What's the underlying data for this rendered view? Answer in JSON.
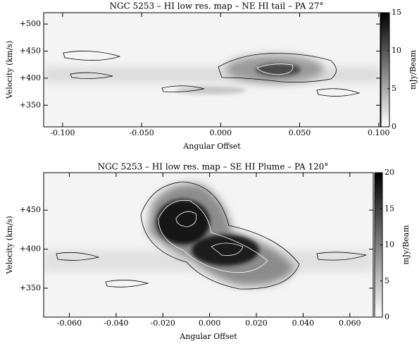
{
  "chart_data": [
    {
      "type": "heatmap",
      "title": "NGC 5253 – HI low res. map – NE HI tail – PA 27°",
      "x_label": "Angular Offset",
      "y_label": "Velocity (km/s)",
      "colorbar_label": "mJy/Beam",
      "xlim": [
        -0.112,
        0.101
      ],
      "ylim": [
        310,
        521
      ],
      "xticks": [
        {
          "value": -0.1,
          "label": "-0.100"
        },
        {
          "value": -0.05,
          "label": "-0.050"
        },
        {
          "value": 0,
          "label": "0.000"
        },
        {
          "value": 0.05,
          "label": "0.050"
        },
        {
          "value": 0.1,
          "label": "0.100"
        }
      ],
      "yticks": [
        {
          "value": 350,
          "label": "+350"
        },
        {
          "value": 400,
          "label": "+400"
        },
        {
          "value": 450,
          "label": "+450"
        },
        {
          "value": 500,
          "label": "+500"
        }
      ],
      "colorbar_lim": [
        0,
        15
      ],
      "colorbar_ticks": [
        0,
        5,
        10,
        15
      ]
    },
    {
      "type": "heatmap",
      "title": "NGC 5253 – HI low res. map – SE HI Plume – PA 120°",
      "x_label": "Angular Offset",
      "y_label": "Velocity (km/s)",
      "colorbar_label": "mJy/Beam",
      "xlim": [
        -0.071,
        0.07
      ],
      "ylim": [
        313,
        498
      ],
      "xticks": [
        {
          "value": -0.06,
          "label": "-0.060"
        },
        {
          "value": -0.04,
          "label": "-0.040"
        },
        {
          "value": -0.02,
          "label": "-0.020"
        },
        {
          "value": 0,
          "label": "0.000"
        },
        {
          "value": 0.02,
          "label": "0.020"
        },
        {
          "value": 0.04,
          "label": "0.040"
        },
        {
          "value": 0.06,
          "label": "0.060"
        }
      ],
      "yticks": [
        {
          "value": 350,
          "label": "+350"
        },
        {
          "value": 400,
          "label": "+400"
        },
        {
          "value": 450,
          "label": "+450"
        }
      ],
      "colorbar_lim": [
        0,
        20
      ],
      "colorbar_ticks": [
        0,
        5,
        10,
        15,
        20
      ]
    }
  ]
}
